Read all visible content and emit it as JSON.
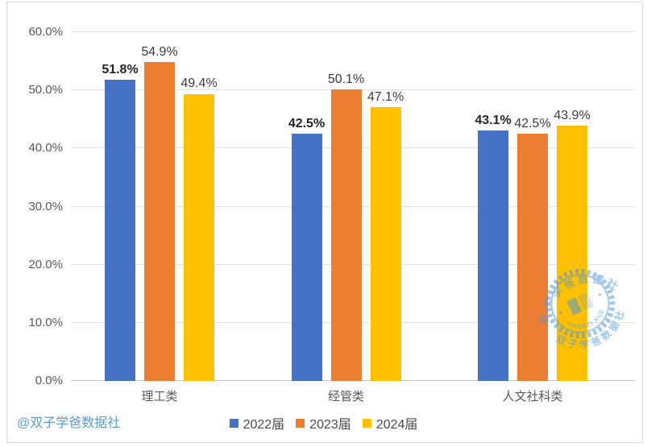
{
  "chart_data": {
    "type": "bar",
    "categories": [
      "理工类",
      "经管类",
      "人文社科类"
    ],
    "series": [
      {
        "name": "2022届",
        "color": "#4472C4",
        "values": [
          51.8,
          42.5,
          43.1
        ],
        "label_bold": true
      },
      {
        "name": "2023届",
        "color": "#ED7D31",
        "values": [
          54.9,
          50.1,
          42.5
        ],
        "label_bold": false
      },
      {
        "name": "2024届",
        "color": "#FFC000",
        "values": [
          49.4,
          47.1,
          43.9
        ],
        "label_bold": false
      }
    ],
    "value_labels": [
      [
        "51.8%",
        "42.5%",
        "43.1%"
      ],
      [
        "54.9%",
        "50.1%",
        "42.5%"
      ],
      [
        "49.4%",
        "47.1%",
        "43.9%"
      ]
    ],
    "ylim": [
      0,
      60
    ],
    "yticks": [
      0,
      10,
      20,
      30,
      40,
      50,
      60
    ],
    "ytick_labels": [
      "0.0%",
      "10.0%",
      "20.0%",
      "30.0%",
      "40.0%",
      "50.0%",
      "60.0%"
    ],
    "grid": true,
    "legend_position": "bottom-center"
  },
  "watermark": {
    "handle_text": "@双子学爸数据社",
    "handle_color": "#5B9BD5",
    "stamp": {
      "arc_top_text": "双子学爸数据社",
      "latin_arc_text": "SHUANGZI XUE BA",
      "arc_bottom_text": "双子学爸数据社",
      "color": "#4f9bd8"
    }
  },
  "colors": {
    "background": "#FFFFFF",
    "border": "#D9D9D9",
    "gridline": "#E2E2E2",
    "axis_text": "#595959",
    "value_label": "#3D3D3D"
  }
}
